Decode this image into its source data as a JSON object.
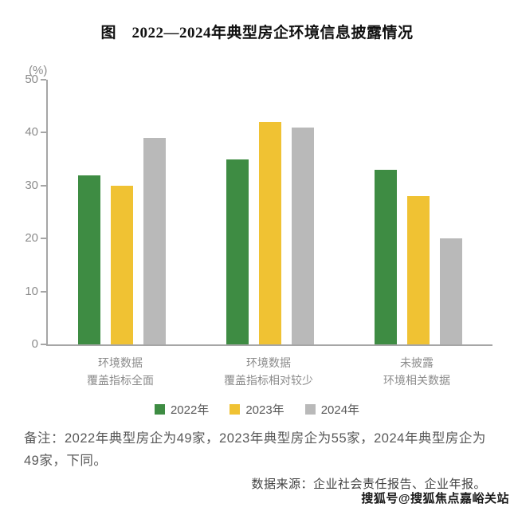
{
  "title": "图　2022—2024年典型房企环境信息披露情况",
  "chart_data": {
    "type": "bar",
    "title": "图 2022—2024年典型房企环境信息披露情况",
    "unit_label": "(%)",
    "categories": [
      [
        "环境数据",
        "覆盖指标全面"
      ],
      [
        "环境数据",
        "覆盖指标相对较少"
      ],
      [
        "未披露",
        "环境相关数据"
      ]
    ],
    "series": [
      {
        "name": "2022年",
        "color": "#3e8c43",
        "values": [
          32,
          35,
          33
        ]
      },
      {
        "name": "2023年",
        "color": "#f0c233",
        "values": [
          30,
          42,
          28
        ]
      },
      {
        "name": "2024年",
        "color": "#b9b9b9",
        "values": [
          39,
          41,
          20
        ]
      }
    ],
    "ylim": [
      0,
      50
    ],
    "yticks": [
      0,
      10,
      20,
      30,
      40,
      50
    ],
    "grid": false,
    "legend_position": "bottom",
    "xlabel": "",
    "ylabel": "(%)"
  },
  "notes": "备注：2022年典型房企为49家，2023年典型房企为55家，2024年典型房企为49家，下同。",
  "source": "数据来源：企业社会责任报告、企业年报。",
  "watermark": "搜狐号@搜狐焦点嘉峪关站"
}
